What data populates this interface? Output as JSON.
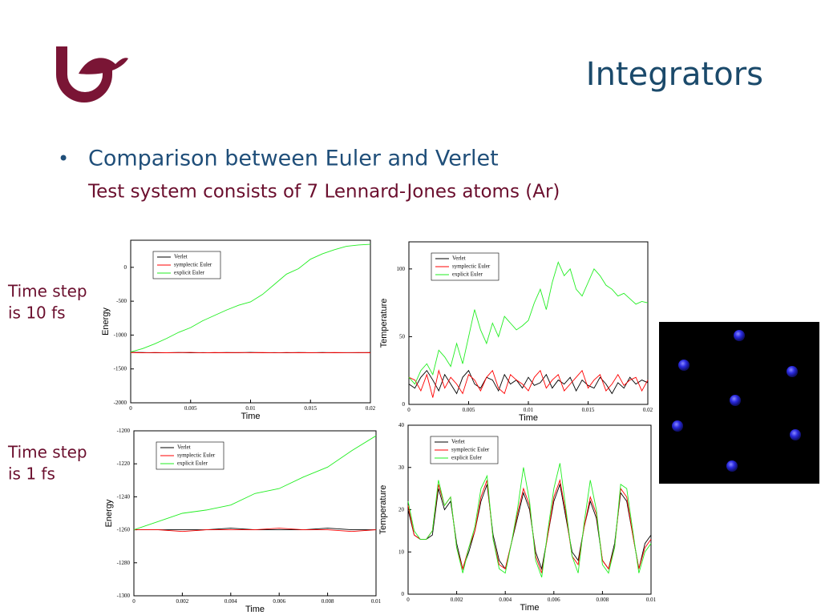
{
  "header": {
    "title": "Integrators"
  },
  "body": {
    "bullet": "Comparison between Euler and Verlet",
    "sub_bullet": "Test system consists of 7 Lennard-Jones atoms (Ar)"
  },
  "row_labels": [
    [
      "Time step",
      "is 10 fs"
    ],
    [
      "Time step",
      "is 1 fs"
    ]
  ],
  "chart_data": [
    {
      "type": "line",
      "x_label": "Time",
      "y_label": "Energy",
      "x": [
        0,
        0.001,
        0.002,
        0.003,
        0.004,
        0.005,
        0.006,
        0.007,
        0.008,
        0.009,
        0.01,
        0.011,
        0.012,
        0.013,
        0.014,
        0.015,
        0.016,
        0.017,
        0.018,
        0.019,
        0.02
      ],
      "xlim": [
        0,
        0.02
      ],
      "xticks": [
        0,
        0.005,
        0.01,
        0.015,
        0.02
      ],
      "ylim": [
        -2000,
        400
      ],
      "yticks": [
        -2000,
        -1500,
        -1000,
        -500,
        0
      ],
      "series": [
        {
          "name": "Verlet",
          "color": "#000000",
          "values": [
            -1255,
            -1258,
            -1262,
            -1260,
            -1257,
            -1261,
            -1259,
            -1262,
            -1258,
            -1260,
            -1256,
            -1261,
            -1259,
            -1262,
            -1258,
            -1260,
            -1257,
            -1261,
            -1259,
            -1260,
            -1258
          ]
        },
        {
          "name": "symplectic Euler",
          "color": "#ff0000",
          "values": [
            -1258,
            -1262,
            -1257,
            -1261,
            -1259,
            -1256,
            -1262,
            -1258,
            -1261,
            -1257,
            -1260,
            -1258,
            -1262,
            -1257,
            -1261,
            -1259,
            -1262,
            -1258,
            -1260,
            -1257,
            -1261
          ]
        },
        {
          "name": "explicit Euler",
          "color": "#22ee22",
          "values": [
            -1250,
            -1200,
            -1130,
            -1050,
            -960,
            -890,
            -790,
            -710,
            -630,
            -560,
            -510,
            -400,
            -250,
            -100,
            -20,
            120,
            200,
            260,
            310,
            330,
            340
          ]
        }
      ]
    },
    {
      "type": "line",
      "x_label": "Time",
      "y_label": "Temperature",
      "x": [
        0,
        0.0005,
        0.001,
        0.0015,
        0.002,
        0.0025,
        0.003,
        0.0035,
        0.004,
        0.0045,
        0.005,
        0.0055,
        0.006,
        0.0065,
        0.007,
        0.0075,
        0.008,
        0.0085,
        0.009,
        0.0095,
        0.01,
        0.0105,
        0.011,
        0.0115,
        0.012,
        0.0125,
        0.013,
        0.0135,
        0.014,
        0.0145,
        0.015,
        0.0155,
        0.016,
        0.0165,
        0.017,
        0.0175,
        0.018,
        0.0185,
        0.019,
        0.0195,
        0.02
      ],
      "xlim": [
        0,
        0.02
      ],
      "xticks": [
        0,
        0.005,
        0.01,
        0.015,
        0.02
      ],
      "ylim": [
        0,
        120
      ],
      "yticks": [
        0,
        50,
        100
      ],
      "series": [
        {
          "name": "Verlet",
          "color": "#000000",
          "values": [
            15,
            12,
            20,
            25,
            18,
            10,
            22,
            15,
            8,
            20,
            25,
            15,
            12,
            20,
            18,
            10,
            22,
            15,
            18,
            12,
            20,
            14,
            16,
            22,
            12,
            18,
            15,
            20,
            10,
            18,
            14,
            12,
            20,
            15,
            8,
            16,
            12,
            20,
            15,
            18,
            16
          ]
        },
        {
          "name": "symplectic Euler",
          "color": "#ff0000",
          "values": [
            20,
            18,
            10,
            22,
            5,
            25,
            12,
            20,
            15,
            8,
            22,
            18,
            10,
            20,
            25,
            12,
            8,
            22,
            18,
            15,
            10,
            20,
            25,
            12,
            18,
            22,
            10,
            15,
            20,
            25,
            12,
            18,
            22,
            10,
            15,
            22,
            14,
            18,
            20,
            10,
            18
          ]
        },
        {
          "name": "explicit Euler",
          "color": "#22ee22",
          "values": [
            20,
            15,
            25,
            30,
            22,
            40,
            35,
            28,
            45,
            30,
            50,
            70,
            55,
            45,
            60,
            50,
            65,
            60,
            55,
            58,
            62,
            75,
            85,
            70,
            90,
            105,
            95,
            100,
            85,
            80,
            90,
            100,
            95,
            88,
            85,
            80,
            82,
            78,
            74,
            76,
            75
          ]
        }
      ]
    },
    {
      "type": "line",
      "x_label": "Time",
      "y_label": "Energy",
      "x": [
        0,
        0.001,
        0.002,
        0.003,
        0.004,
        0.005,
        0.006,
        0.007,
        0.008,
        0.009,
        0.01
      ],
      "xlim": [
        0,
        0.01
      ],
      "xticks": [
        0,
        0.002,
        0.004,
        0.006,
        0.008,
        0.01
      ],
      "ylim": [
        -1300,
        -1200
      ],
      "yticks": [
        -1300,
        -1280,
        -1260,
        -1240,
        -1220,
        -1200
      ],
      "series": [
        {
          "name": "Verlet",
          "color": "#000000",
          "values": [
            -1260,
            -1260,
            -1260,
            -1260,
            -1259,
            -1260,
            -1260,
            -1260,
            -1259,
            -1260,
            -1260
          ]
        },
        {
          "name": "symplectic Euler",
          "color": "#ff0000",
          "values": [
            -1260,
            -1260,
            -1261,
            -1260,
            -1260,
            -1260,
            -1259,
            -1260,
            -1260,
            -1261,
            -1260
          ]
        },
        {
          "name": "explicit Euler",
          "color": "#22ee22",
          "values": [
            -1260,
            -1255,
            -1250,
            -1248,
            -1245,
            -1238,
            -1235,
            -1228,
            -1222,
            -1212,
            -1203
          ]
        }
      ]
    },
    {
      "type": "line",
      "x_label": "Time",
      "y_label": "Temperature",
      "x": [
        0,
        0.00025,
        0.0005,
        0.00075,
        0.001,
        0.00125,
        0.0015,
        0.00175,
        0.002,
        0.00225,
        0.0025,
        0.00275,
        0.003,
        0.00325,
        0.0035,
        0.00375,
        0.004,
        0.00425,
        0.0045,
        0.00475,
        0.005,
        0.00525,
        0.0055,
        0.00575,
        0.006,
        0.00625,
        0.0065,
        0.00675,
        0.007,
        0.00725,
        0.0075,
        0.00775,
        0.008,
        0.00825,
        0.0085,
        0.00875,
        0.009,
        0.00925,
        0.0095,
        0.00975,
        0.01
      ],
      "xlim": [
        0,
        0.01
      ],
      "xticks": [
        0,
        0.002,
        0.004,
        0.006,
        0.008,
        0.01
      ],
      "ylim": [
        0,
        40
      ],
      "yticks": [
        0,
        10,
        20,
        30,
        40
      ],
      "series": [
        {
          "name": "Verlet",
          "color": "#000000",
          "values": [
            20,
            14,
            13,
            13,
            14,
            25,
            20,
            22,
            12,
            6,
            10,
            15,
            22,
            26,
            14,
            8,
            6,
            12,
            18,
            24,
            20,
            10,
            6,
            14,
            22,
            26,
            18,
            10,
            8,
            16,
            22,
            18,
            8,
            6,
            12,
            24,
            22,
            14,
            6,
            12,
            14
          ]
        },
        {
          "name": "symplectic Euler",
          "color": "#ff0000",
          "values": [
            21,
            14,
            13,
            13,
            15,
            26,
            21,
            23,
            11,
            6,
            11,
            15,
            23,
            27,
            13,
            7,
            6,
            12,
            19,
            25,
            21,
            9,
            5,
            14,
            23,
            27,
            19,
            9,
            7,
            16,
            23,
            19,
            8,
            6,
            11,
            25,
            23,
            14,
            6,
            11,
            13
          ]
        },
        {
          "name": "explicit Euler",
          "color": "#22ee22",
          "values": [
            22,
            15,
            13,
            13,
            15,
            27,
            21,
            23,
            11,
            5,
            11,
            16,
            25,
            28,
            13,
            6,
            5,
            12,
            20,
            30,
            22,
            8,
            4,
            15,
            25,
            31,
            20,
            9,
            5,
            17,
            27,
            20,
            7,
            5,
            11,
            26,
            25,
            15,
            5,
            10,
            12
          ]
        }
      ]
    }
  ]
}
